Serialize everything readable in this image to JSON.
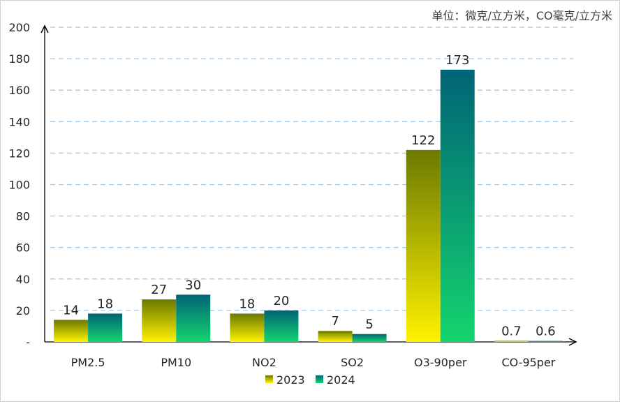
{
  "unit_label": "单位：微克/立方米，CO毫克/立方米",
  "chart_data": {
    "type": "bar",
    "categories": [
      "PM2.5",
      "PM10",
      "NO2",
      "SO2",
      "O3-90per",
      "CO-95per"
    ],
    "series": [
      {
        "name": "2023",
        "values": [
          14,
          27,
          18,
          7,
          122,
          0.7
        ],
        "labels": [
          "14",
          "27",
          "18",
          "7",
          "122",
          "0.7"
        ],
        "gradient": [
          "#fff200",
          "#6b7a00"
        ]
      },
      {
        "name": "2024",
        "values": [
          18,
          30,
          20,
          5,
          173,
          0.6
        ],
        "labels": [
          "18",
          "30",
          "20",
          "5",
          "173",
          "0.6"
        ],
        "gradient": [
          "#14d46e",
          "#006476"
        ]
      }
    ],
    "ylim": [
      0,
      200
    ],
    "yticks": [
      "-",
      "20",
      "40",
      "60",
      "80",
      "100",
      "120",
      "140",
      "160",
      "180",
      "200"
    ],
    "grid": true,
    "grid_color": "#a9c8e3",
    "legend_position": "bottom"
  }
}
